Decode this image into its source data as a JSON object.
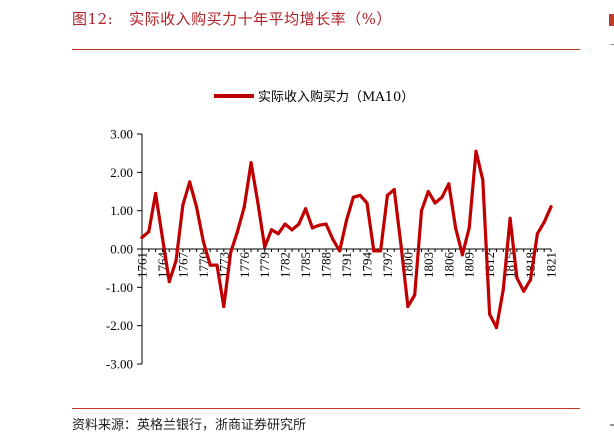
{
  "figure": {
    "label": "图12:",
    "title": "实际收入购买力十年平均增长率（%）",
    "source": "资料来源：英格兰银行，浙商证券研究所"
  },
  "colors": {
    "accent": "#b02125",
    "line": "#c00000",
    "rule": "#c0392b"
  },
  "chart_data": {
    "type": "line",
    "title": "",
    "xlabel": "",
    "ylabel": "",
    "ylim": [
      -3,
      3
    ],
    "xlim": [
      1761,
      1821
    ],
    "yticks": [
      3,
      2,
      1,
      0,
      -1,
      -2,
      -3
    ],
    "ytick_labels": [
      "3.00",
      "2.00",
      "1.00",
      "0.00",
      "-1.00",
      "-2.00",
      "-3.00"
    ],
    "xticks": [
      1761,
      1764,
      1767,
      1770,
      1773,
      1776,
      1779,
      1782,
      1785,
      1788,
      1791,
      1794,
      1797,
      1800,
      1803,
      1806,
      1809,
      1812,
      1815,
      1818,
      1821
    ],
    "legend": {
      "position": "top-center",
      "entries": [
        "实际收入购买力（MA10）"
      ]
    },
    "grid": false,
    "series": [
      {
        "name": "实际收入购买力（MA10）",
        "color": "#c00000",
        "x": [
          1761,
          1762,
          1763,
          1764,
          1765,
          1766,
          1767,
          1768,
          1769,
          1770,
          1771,
          1772,
          1773,
          1774,
          1775,
          1776,
          1777,
          1778,
          1779,
          1780,
          1781,
          1782,
          1783,
          1784,
          1785,
          1786,
          1787,
          1788,
          1789,
          1790,
          1791,
          1792,
          1793,
          1794,
          1795,
          1796,
          1797,
          1798,
          1799,
          1800,
          1801,
          1802,
          1803,
          1804,
          1805,
          1806,
          1807,
          1808,
          1809,
          1810,
          1811,
          1812,
          1813,
          1814,
          1815,
          1816,
          1817,
          1818,
          1819,
          1820,
          1821
        ],
        "y": [
          0.3,
          0.45,
          1.45,
          0.3,
          -0.85,
          -0.3,
          1.15,
          1.75,
          1.1,
          0.2,
          -0.42,
          -0.42,
          -1.5,
          -0.1,
          0.45,
          1.1,
          2.25,
          1.2,
          0.05,
          0.5,
          0.4,
          0.65,
          0.5,
          0.65,
          1.05,
          0.55,
          0.62,
          0.65,
          0.25,
          -0.05,
          0.75,
          1.35,
          1.4,
          1.2,
          -0.05,
          -0.05,
          1.4,
          1.55,
          0.1,
          -1.5,
          -1.2,
          1.0,
          1.5,
          1.2,
          1.35,
          1.7,
          0.55,
          -0.15,
          0.55,
          2.55,
          1.8,
          -1.7,
          -2.05,
          -1.05,
          0.8,
          -0.75,
          -1.1,
          -0.8,
          0.4,
          0.7,
          1.1
        ]
      }
    ]
  }
}
